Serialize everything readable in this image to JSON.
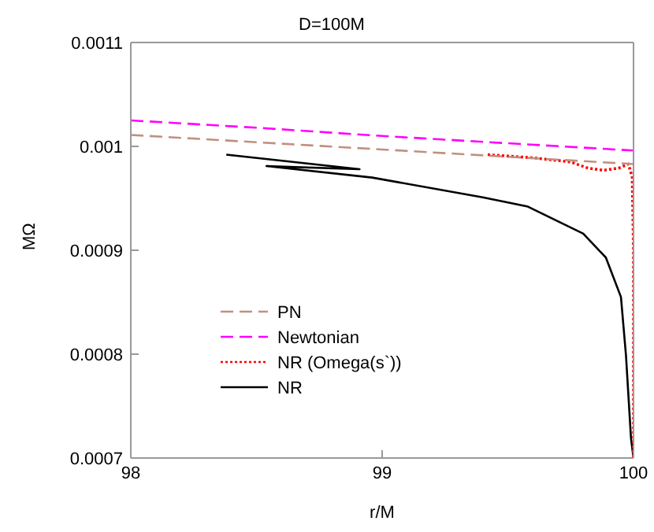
{
  "chart_data": {
    "type": "line",
    "title": "D=100M",
    "xlabel": "r/M",
    "ylabel": "MΩ",
    "xlim": [
      98,
      100
    ],
    "xticks": [
      98,
      99,
      100
    ],
    "ylim": [
      0.0007,
      0.0011
    ],
    "yticks": [
      0.0007,
      0.0008,
      0.0009,
      0.001,
      0.0011
    ],
    "legend": "left",
    "marker": "none",
    "series": [
      {
        "name": "PN",
        "color": "#c09080",
        "line_style": "dashed",
        "x": [
          98,
          98.5,
          99,
          99.5,
          100
        ],
        "values": [
          0.001011,
          0.001004,
          0.000997,
          0.00099,
          0.000983
        ]
      },
      {
        "name": "Newtonian",
        "color": "#ff00ff",
        "line_style": "dashed",
        "x": [
          98,
          98.5,
          99,
          99.5,
          100
        ],
        "values": [
          0.001025,
          0.001018,
          0.00101,
          0.001003,
          0.000996
        ]
      },
      {
        "name": "NR (Omega(s`))",
        "color": "#ff0000",
        "line_style": "dotted",
        "x": [
          99.42,
          99.6,
          99.75,
          99.82,
          99.88,
          99.94,
          99.98,
          99.995,
          100,
          100
        ],
        "values": [
          0.000992,
          0.000989,
          0.000985,
          0.000979,
          0.000977,
          0.000979,
          0.000983,
          0.00097,
          0.0009,
          0.0007
        ]
      },
      {
        "name": "NR",
        "color": "#000000",
        "line_style": "solid",
        "x": [
          98.38,
          98.91,
          98.54,
          98.96,
          99.4,
          99.58,
          99.8,
          99.89,
          99.95,
          99.97,
          99.99,
          100
        ],
        "values": [
          0.000992,
          0.000978,
          0.000981,
          0.00097,
          0.000951,
          0.000942,
          0.000916,
          0.000893,
          0.000855,
          0.000799,
          0.000719,
          0.0007
        ]
      }
    ]
  }
}
